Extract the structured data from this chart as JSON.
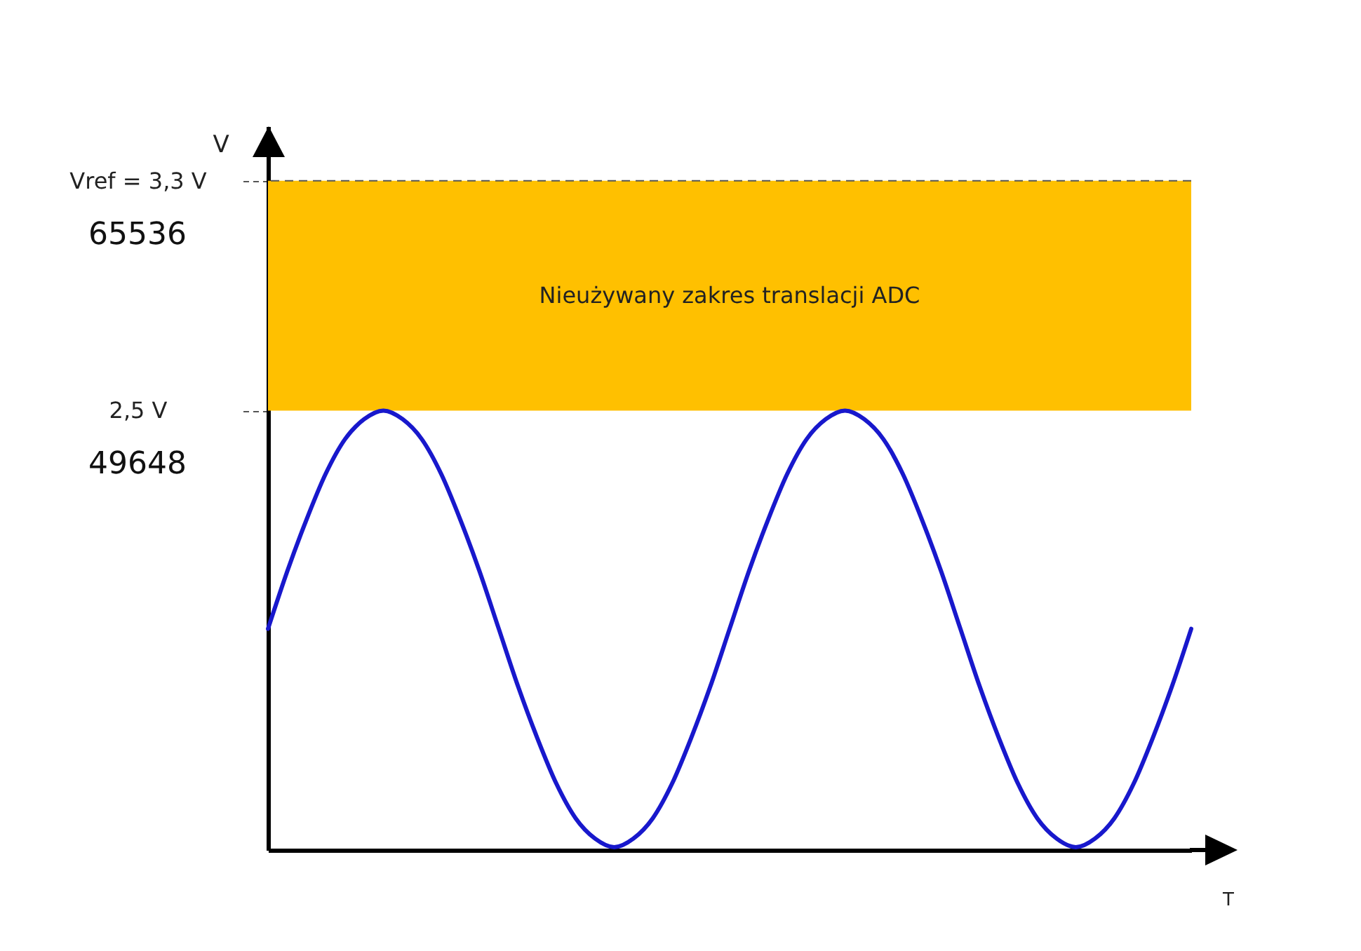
{
  "chart_data": {
    "type": "line",
    "xlabel": "T",
    "ylabel": "V",
    "categories": [
      null,
      null,
      null,
      null,
      null,
      null,
      null,
      null,
      null,
      null,
      null,
      null,
      null,
      null,
      null,
      null,
      null,
      null,
      null,
      null,
      null,
      null,
      null,
      null,
      null,
      null,
      null,
      null,
      null,
      null,
      null,
      null,
      null,
      null,
      null,
      null,
      null,
      null,
      null,
      null,
      null,
      null,
      null,
      null,
      null,
      null,
      null,
      null,
      null
    ],
    "series": [
      {
        "color": "#1818cc",
        "values": [
          1.74,
          1.94,
          2.12,
          2.28,
          2.4,
          2.47,
          2.5,
          2.47,
          2.4,
          2.28,
          2.12,
          1.94,
          1.74,
          1.54,
          1.36,
          1.2,
          1.08,
          1.01,
          0.98,
          1.01,
          1.08,
          1.2,
          1.36,
          1.54,
          1.74,
          1.94,
          2.12,
          2.28,
          2.4,
          2.47,
          2.5,
          2.47,
          2.4,
          2.28,
          2.12,
          1.94,
          1.74,
          1.54,
          1.36,
          1.2,
          1.08,
          1.01,
          0.98,
          1.01,
          1.08,
          1.2,
          1.36,
          1.54,
          1.74
        ]
      }
    ],
    "ylim": [
      0.97,
      3.49
    ],
    "yticks": [
      {
        "value": 2.5,
        "label": "2,5 V"
      },
      {
        "value": 3.3,
        "label": "Vref = 3,3 V"
      }
    ],
    "bands": [
      {
        "axis": "y",
        "from": 2.5,
        "to": 3.3,
        "label": "Nieużywany zakres translacji ADC",
        "color": "#ffc000"
      }
    ],
    "ref_lines": [
      {
        "axis": "y",
        "value": 3.3,
        "color": "#555555",
        "line_style": "dashed"
      }
    ],
    "annotations": [
      "65536",
      "49648"
    ],
    "tick_labels": "y"
  }
}
